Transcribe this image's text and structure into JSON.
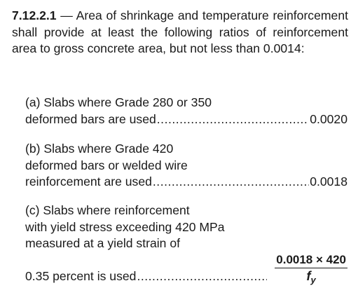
{
  "clause": {
    "number": "7.12.2.1",
    "dash": "—",
    "text": "Area of shrinkage and temperature reinforcement shall provide at least the following ratios of reinforcement area to gross concrete area, but not less than 0.0014:"
  },
  "items": [
    {
      "lines": [
        "(a) Slabs where Grade 280 or 350"
      ],
      "last_line": "deformed bars are used",
      "value": "0.0020"
    },
    {
      "lines": [
        "(b) Slabs where Grade 420",
        "deformed bars or welded wire"
      ],
      "last_line": "reinforcement are used",
      "value": "0.0018"
    },
    {
      "lines": [
        "(c) Slabs where reinforcement",
        "with yield stress exceeding 420 MPa",
        "measured at a yield strain of"
      ],
      "last_line": "0.35 percent is used",
      "value_numerator": "0.0018 × 420",
      "value_denominator_symbol": "f",
      "value_denominator_subscript": "y"
    }
  ]
}
